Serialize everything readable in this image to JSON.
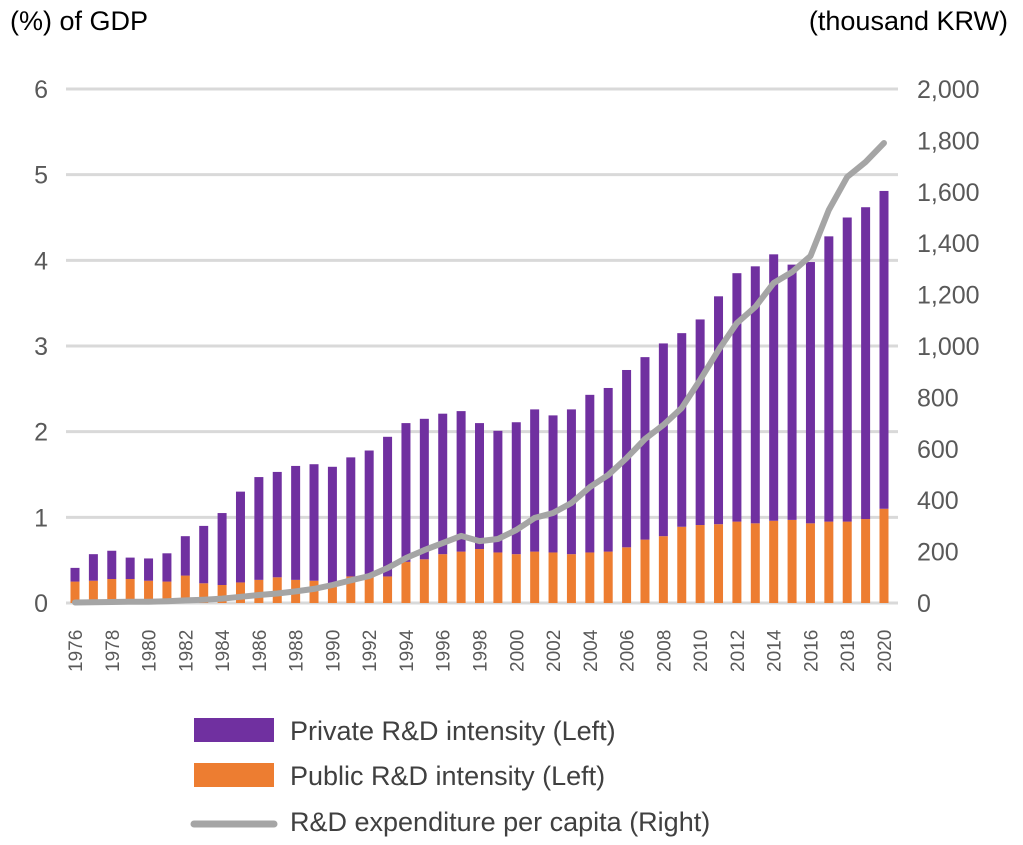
{
  "chart_data": {
    "type": "bar",
    "subtype": "stacked-bar-with-line-secondary-axis",
    "title": "",
    "left_axis_title": "(%) of GDP",
    "right_axis_title": "(thousand KRW)",
    "xlabel": "",
    "ylim_left": [
      0,
      6
    ],
    "ylim_right": [
      0,
      2000
    ],
    "yticks_left": [
      "0",
      "1",
      "2",
      "3",
      "4",
      "5",
      "6"
    ],
    "yticks_right": [
      "0",
      "200",
      "400",
      "600",
      "800",
      "1,000",
      "1,200",
      "1,400",
      "1,600",
      "1,800",
      "2,000"
    ],
    "grid": true,
    "legend_position": "bottom",
    "x": [
      1976,
      1977,
      1978,
      1979,
      1980,
      1981,
      1982,
      1983,
      1984,
      1985,
      1986,
      1987,
      1988,
      1989,
      1990,
      1991,
      1992,
      1993,
      1994,
      1995,
      1996,
      1997,
      1998,
      1999,
      2000,
      2001,
      2002,
      2003,
      2004,
      2005,
      2006,
      2007,
      2008,
      2009,
      2010,
      2011,
      2012,
      2013,
      2014,
      2015,
      2016,
      2017,
      2018,
      2019,
      2020
    ],
    "xtick_labels": [
      "1976",
      "1978",
      "1980",
      "1982",
      "1984",
      "1986",
      "1988",
      "1990",
      "1992",
      "1994",
      "1996",
      "1998",
      "2000",
      "2002",
      "2004",
      "2006",
      "2008",
      "2010",
      "2012",
      "2014",
      "2016",
      "2018",
      "2020"
    ],
    "series": [
      {
        "name": "Public R&D intensity (Left)",
        "kind": "bar",
        "axis": "left",
        "color": "#ED7D31",
        "values": [
          0.25,
          0.26,
          0.28,
          0.28,
          0.26,
          0.25,
          0.32,
          0.23,
          0.21,
          0.24,
          0.27,
          0.3,
          0.27,
          0.26,
          0.23,
          0.31,
          0.3,
          0.31,
          0.48,
          0.51,
          0.57,
          0.6,
          0.63,
          0.59,
          0.57,
          0.6,
          0.59,
          0.57,
          0.59,
          0.6,
          0.65,
          0.74,
          0.78,
          0.89,
          0.91,
          0.92,
          0.95,
          0.93,
          0.96,
          0.97,
          0.93,
          0.95,
          0.95,
          0.98,
          1.1
        ]
      },
      {
        "name": "Private R&D intensity (Left)",
        "kind": "bar",
        "axis": "left",
        "color": "#7030A0",
        "values": [
          0.16,
          0.31,
          0.33,
          0.25,
          0.26,
          0.33,
          0.46,
          0.67,
          0.84,
          1.06,
          1.2,
          1.23,
          1.33,
          1.36,
          1.36,
          1.39,
          1.48,
          1.63,
          1.62,
          1.64,
          1.64,
          1.64,
          1.47,
          1.42,
          1.54,
          1.66,
          1.6,
          1.69,
          1.84,
          1.91,
          2.07,
          2.13,
          2.25,
          2.26,
          2.4,
          2.66,
          2.9,
          3.0,
          3.11,
          2.98,
          3.05,
          3.33,
          3.55,
          3.64,
          3.71
        ]
      },
      {
        "name": "R&D expenditure per capita (Right)",
        "kind": "line",
        "axis": "right",
        "color": "#A5A5A5",
        "values": [
          2,
          3,
          4,
          5,
          5,
          7,
          10,
          13,
          17,
          24,
          31,
          37,
          45,
          55,
          70,
          88,
          105,
          136,
          175,
          206,
          233,
          261,
          241,
          249,
          284,
          331,
          350,
          389,
          451,
          498,
          564,
          638,
          693,
          759,
          868,
          984,
          1089,
          1152,
          1245,
          1288,
          1350,
          1529,
          1658,
          1716,
          1790
        ]
      }
    ]
  },
  "legend": {
    "items": [
      {
        "label": "Private R&D intensity (Left)",
        "color": "#7030A0",
        "kind": "box"
      },
      {
        "label": "Public R&D intensity (Left)",
        "color": "#ED7D31",
        "kind": "box"
      },
      {
        "label": "R&D expenditure per capita (Right)",
        "color": "#A5A5A5",
        "kind": "line"
      }
    ]
  }
}
